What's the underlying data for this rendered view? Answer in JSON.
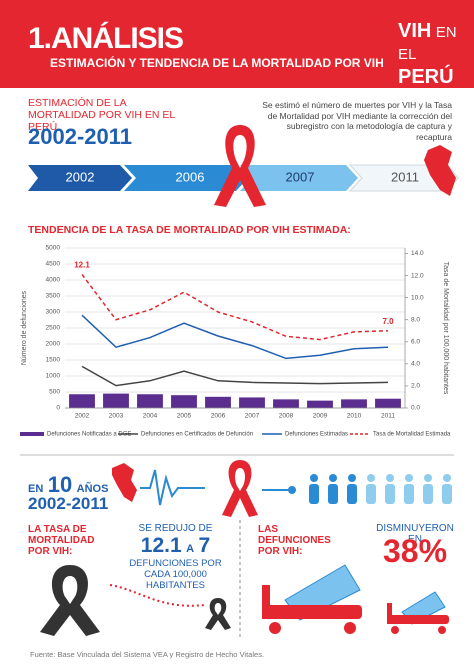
{
  "header": {
    "title": "1.ANÁLISIS",
    "subtitle": "ESTIMACIÓN Y TENDENCIA DE LA MORTALIDAD POR VIH",
    "logo": [
      "VIH",
      "EN",
      "EL",
      "PERÚ"
    ]
  },
  "intro": {
    "heading": "ESTIMACIÓN DE LA MORTALIDAD POR VIH EN EL PERÚ",
    "period": "2002-2011",
    "text": "Se estimó el número de muertes por VIH y la Tasa de Mortalidad por VIH mediante la corrección del subregistro con la metodología de captura y recaptura"
  },
  "timeline": [
    "2002",
    "2006",
    "2007",
    "2011"
  ],
  "chart_data": {
    "type": "combo",
    "title": "TENDENCIA DE LA TASA DE MORTALIDAD POR VIH ESTIMADA:",
    "y_label": "Número de defunciones",
    "y2_label": "Tasa de Mortalidad por 100,000 habitantes",
    "categories": [
      "2002",
      "2003",
      "2004",
      "2005",
      "2006",
      "2007",
      "2008",
      "2009",
      "2010",
      "2011"
    ],
    "ylim": [
      0,
      5000
    ],
    "yticks": [
      0,
      500,
      1000,
      1500,
      2000,
      2500,
      3000,
      3500,
      4000,
      4500,
      5000
    ],
    "y2lim": [
      0,
      14.5
    ],
    "y2ticks": [
      {
        "value": 0,
        "label": "0.0"
      },
      {
        "value": 2,
        "label": "2.0"
      },
      {
        "value": 4,
        "label": "4.0"
      },
      {
        "value": 6,
        "label": "6.0"
      },
      {
        "value": 8,
        "label": "8.0"
      },
      {
        "value": 10,
        "label": "10.0"
      },
      {
        "value": 12,
        "label": "12.0"
      },
      {
        "value": 14,
        "label": "14.0"
      }
    ],
    "grid": true,
    "series": [
      {
        "name": "Defunciones Notificadas a DGE",
        "type": "bar",
        "color": "#5b2d8e",
        "values": [
          430,
          450,
          430,
          400,
          350,
          330,
          270,
          230,
          270,
          290
        ]
      },
      {
        "name": "Defunciones en Certificados de Defunción",
        "type": "line",
        "color": "#444444",
        "values": [
          1300,
          700,
          850,
          1150,
          850,
          800,
          780,
          760,
          780,
          800
        ]
      },
      {
        "name": "Defunciones Estimadas",
        "type": "line",
        "color": "#1f5fb0",
        "values": [
          2900,
          1900,
          2200,
          2650,
          2250,
          1950,
          1550,
          1650,
          1850,
          1900
        ]
      },
      {
        "name": "Tasa de Mortalidad Estimada",
        "type": "line",
        "dashed": true,
        "axis": "y2",
        "color": "#e0262b",
        "values": [
          12.1,
          8.0,
          8.9,
          10.5,
          8.7,
          7.8,
          6.5,
          6.2,
          6.9,
          7.0
        ],
        "value_labels": [
          "12.1",
          null,
          null,
          null,
          null,
          null,
          null,
          null,
          null,
          "7.0"
        ]
      }
    ]
  },
  "summary": {
    "en": "EN",
    "years": "10",
    "years_unit": "AÑOS",
    "period": "2002-2011",
    "rate_title": "LA TASA DE MORTALIDAD POR VIH:",
    "rate_pre": "SE REDUJO DE",
    "rate_from": "12.1",
    "rate_a": "A",
    "rate_to": "7",
    "rate_unit": "DEFUNCIONES POR CADA 100,000 HABITANTES",
    "deaths_title": "LAS DEFUNCIONES POR VIH:",
    "deaths_pre": "DISMINUYERON EN",
    "deaths_value": "38%"
  },
  "source": "Fuente: Base Vinculada del Sistema VEA y Registro de Hecho Vitales."
}
